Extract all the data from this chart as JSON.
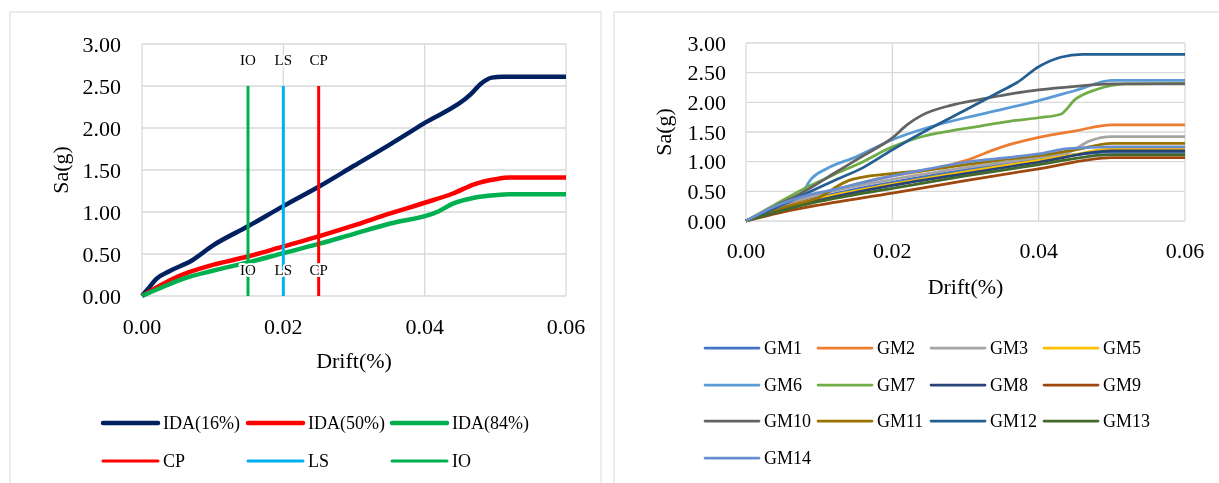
{
  "chart_data": [
    {
      "type": "line",
      "xlabel": "Drift(%)",
      "ylabel": "Sa(g)",
      "xlim": [
        0,
        0.06
      ],
      "ylim": [
        0,
        3
      ],
      "xticks": [
        {
          "value": 0,
          "label": "0.00"
        },
        {
          "value": 0.02,
          "label": "0.02"
        },
        {
          "value": 0.04,
          "label": "0.04"
        },
        {
          "value": 0.06,
          "label": "0.06"
        }
      ],
      "yticks": [
        {
          "value": 0,
          "label": "0.00"
        },
        {
          "value": 0.5,
          "label": "0.50"
        },
        {
          "value": 1,
          "label": "1.00"
        },
        {
          "value": 1.5,
          "label": "1.50"
        },
        {
          "value": 2,
          "label": "2.00"
        },
        {
          "value": 2.5,
          "label": "2.50"
        },
        {
          "value": 3,
          "label": "3.00"
        }
      ],
      "grid": true,
      "legend": "bottom",
      "series": [
        {
          "name": "IDA(16%)",
          "color": "#002060",
          "x": [
            0,
            0.001,
            0.002,
            0.004,
            0.007,
            0.01,
            0.015,
            0.02,
            0.025,
            0.03,
            0.035,
            0.04,
            0.0465,
            0.048,
            0.0495,
            0.051,
            0.06
          ],
          "values": [
            0,
            0.1,
            0.2,
            0.3,
            0.42,
            0.6,
            0.83,
            1.07,
            1.3,
            1.55,
            1.8,
            2.06,
            2.4,
            2.53,
            2.6,
            2.61,
            2.61
          ]
        },
        {
          "name": "IDA(50%)",
          "color": "#ff0000",
          "x": [
            0,
            0.002,
            0.005,
            0.01,
            0.015,
            0.02,
            0.025,
            0.03,
            0.035,
            0.04,
            0.044,
            0.047,
            0.05,
            0.052,
            0.06
          ],
          "values": [
            0,
            0.1,
            0.23,
            0.37,
            0.47,
            0.59,
            0.71,
            0.84,
            0.98,
            1.11,
            1.22,
            1.33,
            1.39,
            1.41,
            1.41
          ]
        },
        {
          "name": "IDA(84%)",
          "color": "#00b050",
          "x": [
            0,
            0.003,
            0.006,
            0.01,
            0.015,
            0.02,
            0.025,
            0.03,
            0.035,
            0.042,
            0.044,
            0.047,
            0.05,
            0.052,
            0.06
          ],
          "values": [
            0,
            0.11,
            0.21,
            0.3,
            0.4,
            0.51,
            0.62,
            0.74,
            0.86,
            1.01,
            1.1,
            1.17,
            1.2,
            1.21,
            1.21
          ]
        },
        {
          "name": "CP",
          "color": "#ff0000",
          "x": [
            0.025,
            0.025
          ],
          "values": [
            0,
            2.5
          ]
        },
        {
          "name": "LS",
          "color": "#00b0f0",
          "x": [
            0.02,
            0.02
          ],
          "values": [
            0,
            2.5
          ]
        },
        {
          "name": "IO",
          "color": "#00b050",
          "x": [
            0.015,
            0.015
          ],
          "values": [
            0,
            2.5
          ]
        }
      ],
      "annotations": [
        {
          "text": "IO",
          "x": 0.015,
          "y": 2.5
        },
        {
          "text": "LS",
          "x": 0.02,
          "y": 2.5
        },
        {
          "text": "CP",
          "x": 0.025,
          "y": 2.5
        },
        {
          "text": "IO",
          "x": 0.015,
          "y": 0
        },
        {
          "text": "LS",
          "x": 0.02,
          "y": 0
        },
        {
          "text": "CP",
          "x": 0.025,
          "y": 0
        }
      ]
    },
    {
      "type": "line",
      "xlabel": "Drift(%)",
      "ylabel": "Sa(g)",
      "xlim": [
        0,
        0.06
      ],
      "ylim": [
        0,
        3
      ],
      "xticks": [
        {
          "value": 0,
          "label": "0.00"
        },
        {
          "value": 0.02,
          "label": "0.02"
        },
        {
          "value": 0.04,
          "label": "0.04"
        },
        {
          "value": 0.06,
          "label": "0.06"
        }
      ],
      "yticks": [
        {
          "value": 0,
          "label": "0.00"
        },
        {
          "value": 0.5,
          "label": "0.50"
        },
        {
          "value": 1,
          "label": "1.00"
        },
        {
          "value": 1.5,
          "label": "1.50"
        },
        {
          "value": 2,
          "label": "2.00"
        },
        {
          "value": 2.5,
          "label": "2.50"
        },
        {
          "value": 3,
          "label": "3.00"
        }
      ],
      "grid": true,
      "legend": "bottom",
      "series": [
        {
          "name": "GM1",
          "color": "#4472c4",
          "x": [
            0,
            0.005,
            0.01,
            0.02,
            0.03,
            0.04,
            0.05,
            0.06
          ],
          "values": [
            0,
            0.23,
            0.4,
            0.65,
            0.86,
            1.04,
            1.16,
            1.16
          ]
        },
        {
          "name": "GM2",
          "color": "#ed7d31",
          "x": [
            0,
            0.005,
            0.01,
            0.015,
            0.02,
            0.025,
            0.03,
            0.035,
            0.04,
            0.045,
            0.05,
            0.06
          ],
          "values": [
            0,
            0.25,
            0.45,
            0.62,
            0.76,
            0.86,
            1.02,
            1.25,
            1.41,
            1.52,
            1.62,
            1.62
          ]
        },
        {
          "name": "GM3",
          "color": "#a5a5a5",
          "x": [
            0,
            0.005,
            0.01,
            0.02,
            0.03,
            0.04,
            0.044,
            0.047,
            0.05,
            0.06
          ],
          "values": [
            0,
            0.27,
            0.45,
            0.7,
            0.9,
            1.07,
            1.15,
            1.35,
            1.42,
            1.42
          ]
        },
        {
          "name": "GM5",
          "color": "#ffc000",
          "x": [
            0,
            0.005,
            0.01,
            0.02,
            0.03,
            0.04,
            0.045,
            0.05,
            0.06
          ],
          "values": [
            0,
            0.21,
            0.38,
            0.62,
            0.83,
            1.02,
            1.12,
            1.22,
            1.22
          ]
        },
        {
          "name": "GM6",
          "color": "#5b9bd5",
          "x": [
            0,
            0.004,
            0.0075,
            0.009,
            0.011,
            0.015,
            0.02,
            0.025,
            0.03,
            0.035,
            0.04,
            0.045,
            0.05,
            0.06
          ],
          "values": [
            0,
            0.22,
            0.45,
            0.72,
            0.88,
            1.08,
            1.37,
            1.58,
            1.74,
            1.88,
            2.03,
            2.2,
            2.37,
            2.37
          ]
        },
        {
          "name": "GM7",
          "color": "#70ad47",
          "x": [
            0,
            0.004,
            0.008,
            0.012,
            0.016,
            0.02,
            0.024,
            0.028,
            0.032,
            0.036,
            0.04,
            0.043,
            0.045,
            0.048,
            0.052,
            0.06
          ],
          "values": [
            0,
            0.28,
            0.55,
            0.78,
            1,
            1.25,
            1.42,
            1.52,
            1.6,
            1.68,
            1.74,
            1.8,
            2.05,
            2.22,
            2.31,
            2.32
          ]
        },
        {
          "name": "GM8",
          "color": "#264478",
          "x": [
            0,
            0.005,
            0.01,
            0.02,
            0.03,
            0.04,
            0.05,
            0.06
          ],
          "values": [
            0,
            0.2,
            0.35,
            0.6,
            0.8,
            0.99,
            1.18,
            1.18
          ]
        },
        {
          "name": "GM9",
          "color": "#9e480e",
          "x": [
            0,
            0.005,
            0.01,
            0.02,
            0.03,
            0.04,
            0.05,
            0.06
          ],
          "values": [
            0,
            0.15,
            0.27,
            0.47,
            0.68,
            0.88,
            1.07,
            1.07
          ]
        },
        {
          "name": "GM10",
          "color": "#636363",
          "x": [
            0,
            0.004,
            0.008,
            0.012,
            0.016,
            0.02,
            0.022,
            0.024,
            0.028,
            0.032,
            0.036,
            0.04,
            0.045,
            0.05,
            0.06
          ],
          "values": [
            0,
            0.25,
            0.5,
            0.8,
            1.1,
            1.4,
            1.62,
            1.78,
            1.95,
            2.05,
            2.14,
            2.21,
            2.27,
            2.31,
            2.31
          ]
        },
        {
          "name": "GM11",
          "color": "#997300",
          "x": [
            0,
            0.005,
            0.0105,
            0.012,
            0.014,
            0.016,
            0.02,
            0.025,
            0.03,
            0.035,
            0.04,
            0.045,
            0.05,
            0.06
          ],
          "values": [
            0,
            0.22,
            0.43,
            0.55,
            0.68,
            0.74,
            0.8,
            0.86,
            0.95,
            1.03,
            1.1,
            1.2,
            1.31,
            1.31
          ]
        },
        {
          "name": "GM12",
          "color": "#255e91",
          "x": [
            0,
            0.004,
            0.008,
            0.012,
            0.016,
            0.02,
            0.025,
            0.03,
            0.035,
            0.037,
            0.04,
            0.043,
            0.046,
            0.06
          ],
          "values": [
            0,
            0.22,
            0.45,
            0.68,
            0.9,
            1.2,
            1.55,
            1.87,
            2.2,
            2.33,
            2.6,
            2.76,
            2.81,
            2.81
          ]
        },
        {
          "name": "GM13",
          "color": "#43682b",
          "x": [
            0,
            0.005,
            0.01,
            0.02,
            0.03,
            0.04,
            0.05,
            0.06
          ],
          "values": [
            0,
            0.18,
            0.33,
            0.55,
            0.76,
            0.95,
            1.12,
            1.12
          ]
        },
        {
          "name": "GM14",
          "color": "#698ed0",
          "x": [
            0,
            0.004,
            0.008,
            0.012,
            0.016,
            0.02,
            0.025,
            0.03,
            0.035,
            0.04,
            0.044,
            0.05,
            0.06
          ],
          "values": [
            0,
            0.25,
            0.42,
            0.53,
            0.65,
            0.76,
            0.88,
            0.99,
            1.06,
            1.13,
            1.22,
            1.25,
            1.25
          ]
        }
      ]
    }
  ]
}
